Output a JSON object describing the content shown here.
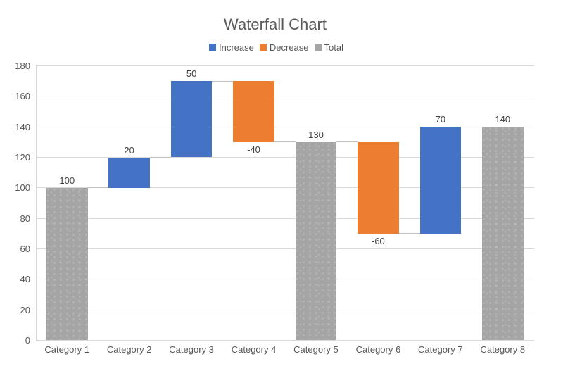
{
  "chart_data": {
    "type": "waterfall",
    "title": "Waterfall Chart",
    "categories": [
      "Category 1",
      "Category 2",
      "Category 3",
      "Category 4",
      "Category 5",
      "Category 6",
      "Category 7",
      "Category 8"
    ],
    "points": [
      {
        "category": "Category 1",
        "kind": "total",
        "value": 100,
        "start": 0,
        "end": 100,
        "label": "100"
      },
      {
        "category": "Category 2",
        "kind": "increase",
        "value": 20,
        "start": 100,
        "end": 120,
        "label": "20"
      },
      {
        "category": "Category 3",
        "kind": "increase",
        "value": 50,
        "start": 120,
        "end": 170,
        "label": "50"
      },
      {
        "category": "Category 4",
        "kind": "decrease",
        "value": -40,
        "start": 170,
        "end": 130,
        "label": "-40"
      },
      {
        "category": "Category 5",
        "kind": "total",
        "value": 130,
        "start": 0,
        "end": 130,
        "label": "130"
      },
      {
        "category": "Category 6",
        "kind": "decrease",
        "value": -60,
        "start": 130,
        "end": 70,
        "label": "-60"
      },
      {
        "category": "Category 7",
        "kind": "increase",
        "value": 70,
        "start": 70,
        "end": 140,
        "label": "70"
      },
      {
        "category": "Category 8",
        "kind": "total",
        "value": 140,
        "start": 0,
        "end": 140,
        "label": "140"
      }
    ],
    "legend": [
      {
        "label": "Increase",
        "kind": "increase",
        "color": "#4472C4"
      },
      {
        "label": "Decrease",
        "kind": "decrease",
        "color": "#ED7D31"
      },
      {
        "label": "Total",
        "kind": "total",
        "color": "#A5A5A5"
      }
    ],
    "y_axis": {
      "min": 0,
      "max": 180,
      "step": 20,
      "tick_labels": [
        "0",
        "20",
        "40",
        "60",
        "80",
        "100",
        "120",
        "140",
        "160",
        "180"
      ]
    },
    "grid": true,
    "legend_position": "top",
    "colors": {
      "increase": "#4472C4",
      "decrease": "#ED7D31",
      "total": "#A5A5A5",
      "gridline": "#D9D9D9",
      "axis_line": "#D9D9D9",
      "connector": "#BFBFBF",
      "title_text": "#595959",
      "axis_text": "#595959",
      "label_text": "#404040",
      "background": "#FFFFFF"
    }
  }
}
